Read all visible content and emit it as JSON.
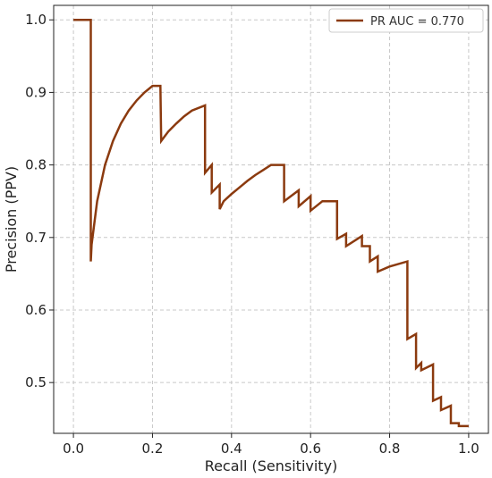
{
  "chart_data": {
    "type": "line",
    "xlabel": "Recall (Sensitivity)",
    "ylabel": "Precision (PPV)",
    "xlim": [
      -0.05,
      1.05
    ],
    "ylim": [
      0.43,
      1.02
    ],
    "xticks": [
      0.0,
      0.2,
      0.4,
      0.6,
      0.8,
      1.0
    ],
    "xtick_labels": [
      "0.0",
      "0.2",
      "0.4",
      "0.6",
      "0.8",
      "1.0"
    ],
    "yticks": [
      0.5,
      0.6,
      0.7,
      0.8,
      0.9,
      1.0
    ],
    "ytick_labels": [
      "0.5",
      "0.6",
      "0.7",
      "0.8",
      "0.9",
      "1.0"
    ],
    "grid": true,
    "legend_position": "top-right",
    "series": [
      {
        "name": "PR AUC = 0.770",
        "color": "#8B3A0F",
        "x": [
          0.0,
          0.044,
          0.044,
          0.046,
          0.06,
          0.08,
          0.1,
          0.12,
          0.14,
          0.16,
          0.18,
          0.2,
          0.22,
          0.222,
          0.24,
          0.26,
          0.28,
          0.3,
          0.333,
          0.333,
          0.35,
          0.35,
          0.37,
          0.37,
          0.38,
          0.4,
          0.42,
          0.44,
          0.46,
          0.48,
          0.5,
          0.533,
          0.533,
          0.57,
          0.57,
          0.6,
          0.6,
          0.63,
          0.63,
          0.667,
          0.667,
          0.69,
          0.69,
          0.73,
          0.73,
          0.75,
          0.75,
          0.77,
          0.77,
          0.8,
          0.8,
          0.845,
          0.845,
          0.867,
          0.867,
          0.88,
          0.88,
          0.91,
          0.91,
          0.93,
          0.93,
          0.955,
          0.955,
          0.975,
          0.975,
          1.0
        ],
        "y": [
          1.0,
          1.0,
          0.667,
          0.69,
          0.75,
          0.8,
          0.833,
          0.857,
          0.875,
          0.889,
          0.9,
          0.909,
          0.909,
          0.833,
          0.846,
          0.857,
          0.867,
          0.875,
          0.882,
          0.789,
          0.8,
          0.762,
          0.773,
          0.739,
          0.75,
          0.76,
          0.769,
          0.778,
          0.786,
          0.793,
          0.8,
          0.8,
          0.75,
          0.765,
          0.743,
          0.757,
          0.737,
          0.75,
          0.75,
          0.75,
          0.698,
          0.705,
          0.688,
          0.702,
          0.688,
          0.688,
          0.667,
          0.674,
          0.653,
          0.66,
          0.66,
          0.667,
          0.56,
          0.567,
          0.52,
          0.527,
          0.517,
          0.525,
          0.475,
          0.48,
          0.462,
          0.468,
          0.444,
          0.444,
          0.44,
          0.44
        ]
      }
    ]
  }
}
